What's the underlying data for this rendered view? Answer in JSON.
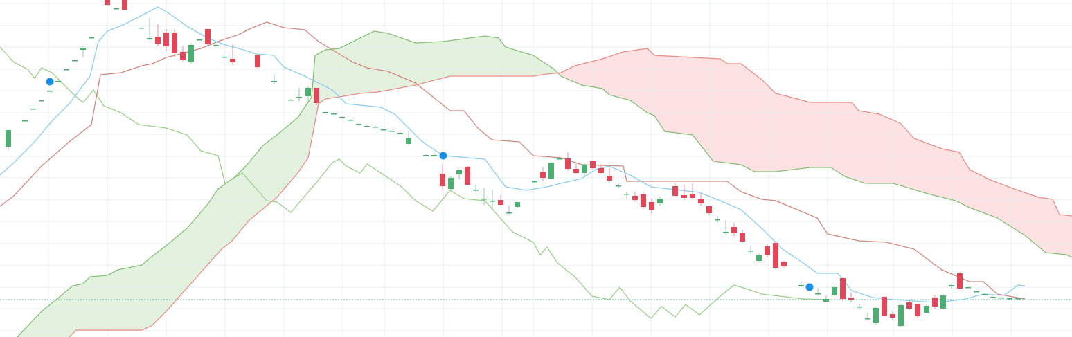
{
  "chart_data": {
    "type": "candlestick",
    "xlim": [
      0,
      1548
    ],
    "ylim": [
      0,
      487
    ],
    "grid": true,
    "xticks": [
      70,
      155,
      240,
      325,
      410,
      495,
      555,
      640,
      725,
      770,
      855,
      940,
      1025,
      1110,
      1195,
      1290,
      1375,
      1460
    ],
    "yticks": [
      9,
      41,
      72,
      104,
      135,
      167,
      198,
      230,
      261,
      293,
      324,
      356,
      387,
      419,
      450,
      482
    ],
    "grid_color": "#e3ecef",
    "up_color": "#4caf72",
    "down_color": "#e0485a",
    "candles": [
      [
        12,
        275,
        300,
        270,
        299
      ],
      [
        36,
        313,
        314,
        312,
        313
      ],
      [
        48,
        330,
        331,
        329,
        330
      ],
      [
        60,
        342,
        343,
        341,
        342
      ],
      [
        72,
        356,
        357,
        355,
        356
      ],
      [
        84,
        370,
        371,
        369,
        370
      ],
      [
        96,
        387,
        388,
        386,
        387
      ],
      [
        108,
        400,
        401,
        399,
        400
      ],
      [
        120,
        415,
        420,
        404,
        418
      ],
      [
        132,
        433,
        434,
        432,
        433
      ],
      [
        155,
        487,
        487,
        479,
        480
      ],
      [
        168,
        475,
        476,
        474,
        475
      ],
      [
        180,
        487,
        487,
        472,
        473
      ],
      [
        204,
        447,
        448,
        446,
        447
      ],
      [
        216,
        430,
        462,
        429,
        432
      ],
      [
        228,
        434,
        452,
        420,
        424
      ],
      [
        240,
        440,
        445,
        413,
        420
      ],
      [
        252,
        440,
        445,
        405,
        410
      ],
      [
        264,
        412,
        420,
        398,
        400
      ],
      [
        276,
        397,
        425,
        395,
        422
      ],
      [
        288,
        430,
        431,
        429,
        430
      ],
      [
        300,
        445,
        446,
        420,
        424
      ],
      [
        312,
        422,
        423,
        421,
        422
      ],
      [
        324,
        405,
        406,
        404,
        405
      ],
      [
        336,
        402,
        423,
        393,
        397
      ],
      [
        372,
        407,
        408,
        388,
        390
      ],
      [
        396,
        370,
        380,
        365,
        370
      ],
      [
        420,
        343,
        344,
        342,
        343
      ],
      [
        432,
        347,
        360,
        340,
        347
      ],
      [
        445,
        348,
        362,
        340,
        360
      ],
      [
        457,
        360,
        360,
        335,
        338
      ],
      [
        470,
        325,
        326,
        324,
        325
      ],
      [
        482,
        323,
        324,
        322,
        323
      ],
      [
        494,
        318,
        319,
        317,
        318
      ],
      [
        506,
        314,
        315,
        313,
        314
      ],
      [
        518,
        308,
        309,
        307,
        308
      ],
      [
        530,
        305,
        306,
        304,
        305
      ],
      [
        542,
        304,
        305,
        303,
        304
      ],
      [
        554,
        300,
        301,
        299,
        300
      ],
      [
        566,
        298,
        299,
        297,
        298
      ],
      [
        578,
        295,
        296,
        294,
        295
      ],
      [
        590,
        279,
        298,
        278,
        287
      ],
      [
        615,
        263,
        264,
        262,
        263
      ],
      [
        627,
        263,
        264,
        262,
        263
      ],
      [
        639,
        236,
        250,
        212,
        218
      ],
      [
        651,
        214,
        233,
        212,
        230
      ],
      [
        663,
        235,
        242,
        228,
        241
      ],
      [
        675,
        246,
        247,
        219,
        220
      ],
      [
        687,
        213,
        220,
        210,
        213
      ],
      [
        699,
        200,
        215,
        190,
        200
      ],
      [
        711,
        197,
        213,
        185,
        197
      ],
      [
        723,
        198,
        205,
        190,
        191
      ],
      [
        735,
        180,
        190,
        178,
        180
      ],
      [
        747,
        188,
        196,
        187,
        195
      ],
      [
        772,
        225,
        226,
        224,
        225
      ],
      [
        784,
        239,
        245,
        225,
        230
      ],
      [
        796,
        229,
        253,
        228,
        252
      ],
      [
        808,
        258,
        259,
        257,
        258
      ],
      [
        820,
        258,
        267,
        240,
        243
      ],
      [
        832,
        243,
        252,
        235,
        237
      ],
      [
        844,
        237,
        252,
        233,
        249
      ],
      [
        856,
        254,
        255,
        242,
        244
      ],
      [
        868,
        244,
        250,
        236,
        237
      ],
      [
        880,
        233,
        245,
        224,
        226
      ],
      [
        893,
        219,
        222,
        215,
        219
      ],
      [
        905,
        207,
        210,
        200,
        207
      ],
      [
        917,
        204,
        210,
        196,
        198
      ],
      [
        929,
        206,
        210,
        185,
        188
      ],
      [
        941,
        195,
        200,
        178,
        183
      ],
      [
        953,
        193,
        202,
        190,
        200
      ],
      [
        975,
        218,
        222,
        203,
        204
      ],
      [
        988,
        205,
        220,
        198,
        201
      ],
      [
        1000,
        207,
        222,
        200,
        201
      ],
      [
        1012,
        199,
        208,
        190,
        193
      ],
      [
        1024,
        189,
        190,
        177,
        179
      ],
      [
        1036,
        170,
        175,
        165,
        170
      ],
      [
        1048,
        152,
        168,
        148,
        152
      ],
      [
        1060,
        159,
        165,
        146,
        150
      ],
      [
        1072,
        151,
        155,
        136,
        138
      ],
      [
        1084,
        125,
        132,
        120,
        125
      ],
      [
        1096,
        110,
        121,
        109,
        119
      ],
      [
        1108,
        131,
        135,
        115,
        119
      ],
      [
        1120,
        136,
        137,
        98,
        100
      ],
      [
        1132,
        109,
        110,
        100,
        102
      ],
      [
        1157,
        75,
        80,
        72,
        75
      ],
      [
        1181,
        63,
        70,
        60,
        63
      ],
      [
        1193,
        51,
        60,
        50,
        55
      ],
      [
        1205,
        61,
        74,
        59,
        72
      ],
      [
        1217,
        85,
        86,
        52,
        55
      ],
      [
        1229,
        57,
        65,
        50,
        54
      ],
      [
        1241,
        44,
        48,
        41,
        44
      ],
      [
        1253,
        27,
        35,
        25,
        27
      ],
      [
        1265,
        20,
        44,
        18,
        42
      ],
      [
        1277,
        58,
        59,
        30,
        31
      ],
      [
        1289,
        33,
        37,
        25,
        28
      ],
      [
        1301,
        16,
        47,
        15,
        46
      ],
      [
        1313,
        50,
        53,
        39,
        41
      ],
      [
        1325,
        47,
        48,
        28,
        30
      ],
      [
        1338,
        35,
        47,
        34,
        45
      ],
      [
        1350,
        57,
        60,
        40,
        44
      ],
      [
        1362,
        41,
        62,
        40,
        60
      ],
      [
        1374,
        73,
        77,
        70,
        75
      ],
      [
        1386,
        92,
        94,
        69,
        70
      ],
      [
        1398,
        72,
        73,
        71,
        72
      ],
      [
        1410,
        66,
        67,
        65,
        66
      ],
      [
        1422,
        62,
        63,
        61,
        62
      ],
      [
        1434,
        58,
        59,
        57,
        58
      ],
      [
        1446,
        57,
        58,
        56,
        57
      ],
      [
        1458,
        56,
        57,
        55,
        56
      ],
      [
        1470,
        56,
        57,
        55,
        56
      ]
    ],
    "tenkan": {
      "color": "#8ccdf2",
      "x": [
        0,
        20,
        50,
        75,
        100,
        130,
        142,
        155,
        180,
        205,
        228,
        245,
        270,
        300,
        325,
        345,
        370,
        395,
        410,
        440,
        480,
        500,
        550,
        570,
        590,
        610,
        640,
        700,
        730,
        760,
        790,
        810,
        840,
        860,
        880,
        910,
        940,
        1010,
        1040,
        1070,
        1100,
        1130,
        1160,
        1180,
        1210,
        1230,
        1260,
        1290,
        1350,
        1390,
        1420,
        1450,
        1470,
        1480
      ],
      "values": [
        234,
        252,
        282,
        312,
        337,
        377,
        427,
        442,
        452,
        465,
        477,
        467,
        449,
        432,
        422,
        417,
        409,
        407,
        390,
        377,
        357,
        337,
        332,
        322,
        302,
        282,
        262,
        257,
        217,
        212,
        217,
        222,
        229,
        242,
        247,
        234,
        217,
        209,
        197,
        184,
        157,
        127,
        107,
        92,
        92,
        67,
        57,
        54,
        50,
        54,
        62,
        60,
        75,
        74
      ]
    },
    "kijun": {
      "color": "#d4877f",
      "x": [
        0,
        20,
        60,
        100,
        132,
        145,
        175,
        190,
        205,
        220,
        240,
        260,
        290,
        320,
        345,
        360,
        385,
        410,
        440,
        460,
        485,
        510,
        530,
        560,
        600,
        625,
        650,
        670,
        690,
        710,
        750,
        770,
        810,
        840,
        900,
        905,
        1050,
        1070,
        1100,
        1120,
        1180,
        1195,
        1240,
        1280,
        1320,
        1360,
        1400,
        1420,
        1440,
        1480
      ],
      "values": [
        189,
        204,
        247,
        282,
        307,
        379,
        382,
        387,
        392,
        395,
        404,
        409,
        417,
        429,
        437,
        445,
        455,
        447,
        444,
        427,
        412,
        397,
        389,
        384,
        367,
        347,
        327,
        327,
        302,
        285,
        282,
        262,
        259,
        249,
        247,
        225,
        225,
        210,
        199,
        197,
        172,
        149,
        139,
        137,
        127,
        97,
        80,
        80,
        62,
        55
      ]
    },
    "chikou": {
      "color": "#9ccf8a",
      "x": [
        0,
        20,
        40,
        50,
        60,
        75,
        90,
        110,
        120,
        135,
        150,
        175,
        200,
        240,
        270,
        290,
        315,
        325,
        350,
        385,
        400,
        420,
        460,
        480,
        490,
        500,
        520,
        530,
        550,
        580,
        600,
        625,
        650,
        670,
        700,
        740,
        770,
        780,
        790,
        805,
        830,
        855,
        880,
        895,
        910,
        940,
        955,
        975,
        990,
        1010,
        1040,
        1060,
        1080,
        1100,
        1160,
        1200
      ],
      "values": [
        419,
        397,
        387,
        374,
        389,
        382,
        367,
        347,
        339,
        357,
        334,
        324,
        307,
        302,
        292,
        269,
        262,
        222,
        237,
        197,
        195,
        180,
        227,
        252,
        257,
        247,
        237,
        250,
        237,
        217,
        197,
        182,
        212,
        200,
        197,
        152,
        137,
        119,
        130,
        107,
        87,
        59,
        54,
        72,
        52,
        27,
        44,
        29,
        47,
        32,
        59,
        75,
        69,
        62,
        55,
        54
      ]
    },
    "senkou_a": {
      "color": "#86c176",
      "x": [
        25,
        60,
        85,
        105,
        120,
        130,
        155,
        170,
        205,
        220,
        240,
        270,
        300,
        315,
        340,
        355,
        380,
        400,
        430,
        450,
        455,
        470,
        490,
        520,
        540,
        560,
        600,
        640,
        700,
        720,
        730,
        770,
        800,
        810,
        840,
        870,
        880,
        910,
        935,
        945,
        960,
        1000,
        1030,
        1070,
        1090,
        1120,
        1170,
        1200,
        1220,
        1250,
        1290,
        1340,
        1380,
        1400,
        1440,
        1480,
        1510,
        1540,
        1548
      ],
      "values": [
        0,
        37,
        57,
        74,
        77,
        87,
        89,
        97,
        104,
        117,
        132,
        157,
        192,
        214,
        232,
        247,
        277,
        292,
        317,
        347,
        407,
        415,
        417,
        432,
        442,
        439,
        425,
        427,
        435,
        432,
        419,
        407,
        387,
        377,
        364,
        359,
        350,
        342,
        324,
        320,
        297,
        292,
        254,
        249,
        239,
        239,
        245,
        245,
        232,
        222,
        222,
        207,
        197,
        187,
        172,
        147,
        122,
        119,
        115
      ]
    },
    "senkou_b": {
      "color": "#ec8e88",
      "x": [
        100,
        110,
        205,
        220,
        240,
        280,
        320,
        335,
        360,
        400,
        430,
        445,
        460,
        470,
        490,
        520,
        545,
        600,
        650,
        770,
        790,
        810,
        830,
        870,
        900,
        935,
        945,
        1040,
        1050,
        1070,
        1100,
        1120,
        1140,
        1170,
        1230,
        1240,
        1270,
        1300,
        1320,
        1360,
        1385,
        1400,
        1430,
        1470,
        1500,
        1520,
        1530,
        1548
      ],
      "values": [
        0,
        10,
        10,
        17,
        37,
        82,
        127,
        139,
        169,
        202,
        237,
        259,
        337,
        344,
        347,
        352,
        354,
        364,
        377,
        377,
        380,
        382,
        392,
        402,
        412,
        417,
        407,
        402,
        395,
        395,
        372,
        352,
        347,
        339,
        339,
        327,
        322,
        309,
        287,
        272,
        267,
        242,
        227,
        212,
        202,
        199,
        177,
        175
      ]
    },
    "cloud_colors": {
      "bull": "#e3f1df",
      "bear": "#fde1e3"
    },
    "markers": {
      "color": "#1a8fe8",
      "x": [
        72,
        640,
        1169
      ],
      "values": [
        369,
        262,
        72
      ]
    },
    "hline": {
      "value": 54,
      "color": "#5fbfae"
    }
  }
}
